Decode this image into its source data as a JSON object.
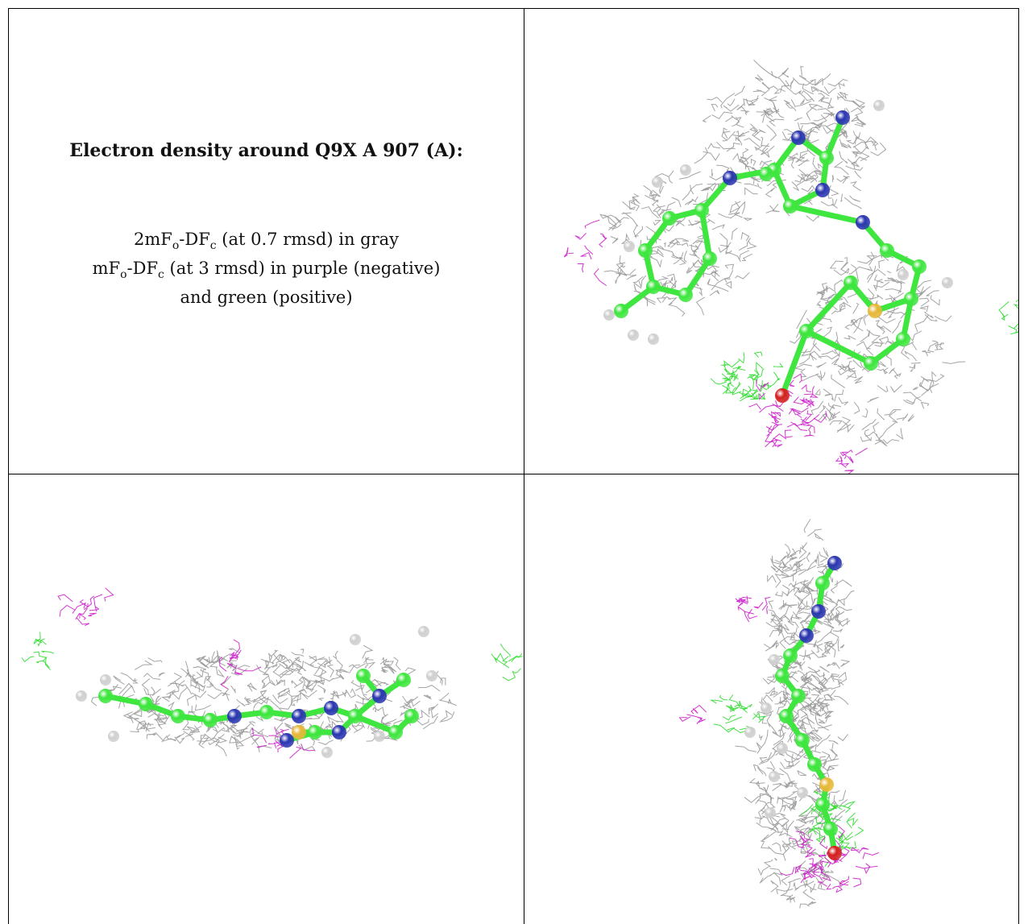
{
  "panel_title": "Electron density around Q9X A 907 (A):",
  "legend": {
    "line1": {
      "pre": "2mF",
      "sub1": "o",
      "mid": "-DF",
      "sub2": "c",
      "post": " (at 0.7 rmsd) in gray"
    },
    "line2": {
      "pre": "mF",
      "sub1": "o",
      "mid": "-DF",
      "sub2": "c",
      "post": " (at 3 rmsd) in purple (negative)"
    },
    "line3": "and green (positive)"
  },
  "colors": {
    "mesh_2fofc": "#9a9a9a",
    "mesh_negative": "#cc22cc",
    "mesh_positive": "#33dd33",
    "carbon": "#3fe63f",
    "nitrogen": "#2b36b0",
    "sulfur": "#e8b83a",
    "oxygen": "#d42020",
    "hydrogen": "#e8e8e8"
  },
  "views": [
    {
      "name": "view-top-right"
    },
    {
      "name": "view-bottom-left"
    },
    {
      "name": "view-bottom-right"
    }
  ]
}
